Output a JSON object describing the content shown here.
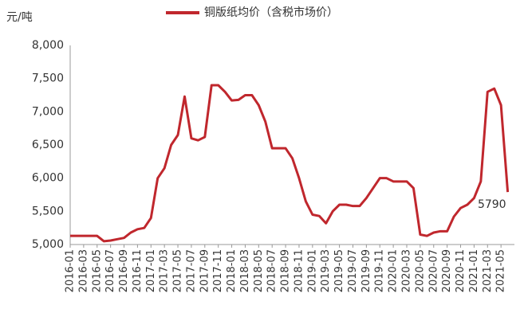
{
  "chart_data": {
    "type": "line",
    "y_unit": "元/吨",
    "categories": [
      "2016-01",
      null,
      "2016-03",
      null,
      "2016-05",
      null,
      "2016-07",
      null,
      "2016-09",
      null,
      "2016-11",
      null,
      "2017-01",
      null,
      "2017-03",
      null,
      "2017-05",
      null,
      "2017-07",
      null,
      "2017-09",
      null,
      "2017-11",
      null,
      "2018-01",
      null,
      "2018-03",
      null,
      "2018-05",
      null,
      "2018-07",
      null,
      "2018-09",
      null,
      "2018-11",
      null,
      "2019-01",
      null,
      "2019-03",
      null,
      "2019-05",
      null,
      "2019-07",
      null,
      "2019-09",
      null,
      "2019-11",
      null,
      "2020-01",
      null,
      "2020-03",
      null,
      "2020-05",
      null,
      "2020-07",
      null,
      "2020-09",
      null,
      "2020-11",
      null,
      "2021-01",
      null,
      "2021-03",
      null,
      "2021-05",
      null
    ],
    "series": [
      {
        "name": "铜版纸均价（含税市场价）",
        "color": "#c0272d",
        "values": [
          5130,
          5130,
          5130,
          5130,
          5130,
          5050,
          5060,
          5080,
          5100,
          5180,
          5230,
          5250,
          5400,
          6000,
          6150,
          6500,
          6650,
          7230,
          6600,
          6570,
          6620,
          7400,
          7400,
          7300,
          7170,
          7180,
          7250,
          7250,
          7100,
          6850,
          6450,
          6450,
          6450,
          6300,
          6000,
          5650,
          5450,
          5430,
          5320,
          5500,
          5600,
          5600,
          5580,
          5580,
          5700,
          5850,
          6000,
          6000,
          5950,
          5950,
          5950,
          5850,
          5150,
          5130,
          5180,
          5200,
          5200,
          5420,
          5550,
          5600,
          5700,
          5950,
          7300,
          7350,
          7100,
          5790
        ]
      }
    ],
    "ylim": [
      5000,
      8000
    ],
    "yticks": [
      {
        "value": 5000,
        "label": "5,000"
      },
      {
        "value": 5500,
        "label": "5,500"
      },
      {
        "value": 6000,
        "label": "6,000"
      },
      {
        "value": 6500,
        "label": "6,500"
      },
      {
        "value": 7000,
        "label": "7,000"
      },
      {
        "value": 7500,
        "label": "7,500"
      },
      {
        "value": 8000,
        "label": "8,000"
      }
    ],
    "grid": false,
    "legend": "top"
  }
}
